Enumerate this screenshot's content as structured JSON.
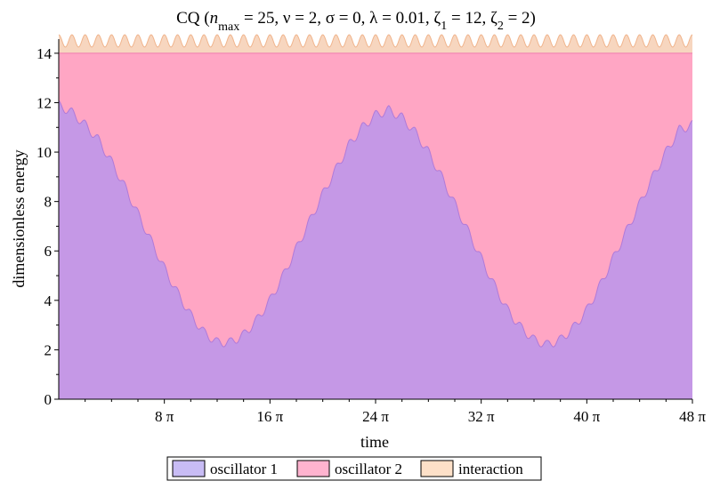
{
  "chart_data": {
    "type": "area",
    "stacked": true,
    "title": "CQ  (n_max = 25, ν = 2, σ = 0, λ = 0.01, ζ_1 = 12, ζ_2 = 2)",
    "title_parts": {
      "prefix": "CQ  (",
      "n": "n",
      "max": "max",
      "rest": " = 25, ν = 2, σ = 0, λ = 0.01, ζ",
      "sub1": "1",
      "mid": " = 12, ζ",
      "sub2": "2",
      "end": " = 2)"
    },
    "xlabel": "time",
    "ylabel": "dimensionless energy",
    "xlim": [
      0,
      48
    ],
    "x_unit": "π",
    "ylim": [
      0,
      14.5
    ],
    "x_ticks": [
      {
        "value": 8,
        "label": "8 π"
      },
      {
        "value": 16,
        "label": "16 π"
      },
      {
        "value": 24,
        "label": "24 π"
      },
      {
        "value": 32,
        "label": "32 π"
      },
      {
        "value": 40,
        "label": "40 π"
      },
      {
        "value": 48,
        "label": "48 π"
      }
    ],
    "y_ticks": [
      {
        "value": 0,
        "label": "0"
      },
      {
        "value": 2,
        "label": "2"
      },
      {
        "value": 4,
        "label": "4"
      },
      {
        "value": 6,
        "label": "6"
      },
      {
        "value": 8,
        "label": "8"
      },
      {
        "value": 10,
        "label": "10"
      },
      {
        "value": 12,
        "label": "12"
      },
      {
        "value": 14,
        "label": "14"
      }
    ],
    "legend_position": "bottom",
    "series": [
      {
        "name": "oscillator 1",
        "color": "#c598e6",
        "legend_color": "#c8bcf5",
        "x": [
          0,
          1,
          2,
          3,
          4,
          5,
          6,
          7,
          8,
          9,
          10,
          11,
          12,
          13,
          14,
          15,
          16,
          17,
          18,
          19,
          20,
          21,
          22,
          23,
          24,
          25,
          26,
          27,
          28,
          29,
          30,
          31,
          32,
          33,
          34,
          35,
          36,
          37,
          38,
          39,
          40,
          41,
          42,
          43,
          44,
          45,
          46,
          47,
          48
        ],
        "y": [
          11.9,
          11.6,
          11.1,
          10.5,
          9.6,
          8.6,
          7.5,
          6.4,
          5.3,
          4.3,
          3.4,
          2.7,
          2.3,
          2.3,
          2.6,
          3.2,
          4.0,
          5.0,
          6.1,
          7.2,
          8.3,
          9.3,
          10.3,
          11.0,
          11.5,
          11.7,
          11.4,
          10.8,
          10.0,
          9.0,
          7.9,
          6.8,
          5.7,
          4.6,
          3.6,
          2.9,
          2.4,
          2.2,
          2.4,
          2.9,
          3.6,
          4.6,
          5.7,
          6.8,
          7.9,
          9.0,
          10.0,
          10.9,
          11.1
        ]
      },
      {
        "name": "oscillator 2",
        "color": "#ffa6c4",
        "legend_color": "#ffb3cf",
        "x": [
          0,
          1,
          2,
          3,
          4,
          5,
          6,
          7,
          8,
          9,
          10,
          11,
          12,
          13,
          14,
          15,
          16,
          17,
          18,
          19,
          20,
          21,
          22,
          23,
          24,
          25,
          26,
          27,
          28,
          29,
          30,
          31,
          32,
          33,
          34,
          35,
          36,
          37,
          38,
          39,
          40,
          41,
          42,
          43,
          44,
          45,
          46,
          47,
          48
        ],
        "y": [
          2.1,
          2.4,
          2.9,
          3.5,
          4.4,
          5.4,
          6.5,
          7.6,
          8.7,
          9.7,
          10.6,
          11.3,
          11.7,
          11.7,
          11.4,
          10.8,
          10.0,
          9.0,
          7.9,
          6.8,
          5.7,
          4.7,
          3.7,
          3.0,
          2.5,
          2.3,
          2.6,
          3.2,
          4.0,
          5.0,
          6.1,
          7.2,
          8.3,
          9.4,
          10.4,
          11.1,
          11.6,
          11.8,
          11.6,
          11.1,
          10.4,
          9.4,
          8.3,
          7.2,
          6.1,
          5.0,
          4.0,
          3.1,
          2.9
        ]
      },
      {
        "name": "interaction",
        "color": "#f7d6bf",
        "legend_color": "#fde0c8",
        "x": [
          0,
          48
        ],
        "y_min": 0.25,
        "y_max": 0.75,
        "oscillation_period": 1
      }
    ]
  }
}
